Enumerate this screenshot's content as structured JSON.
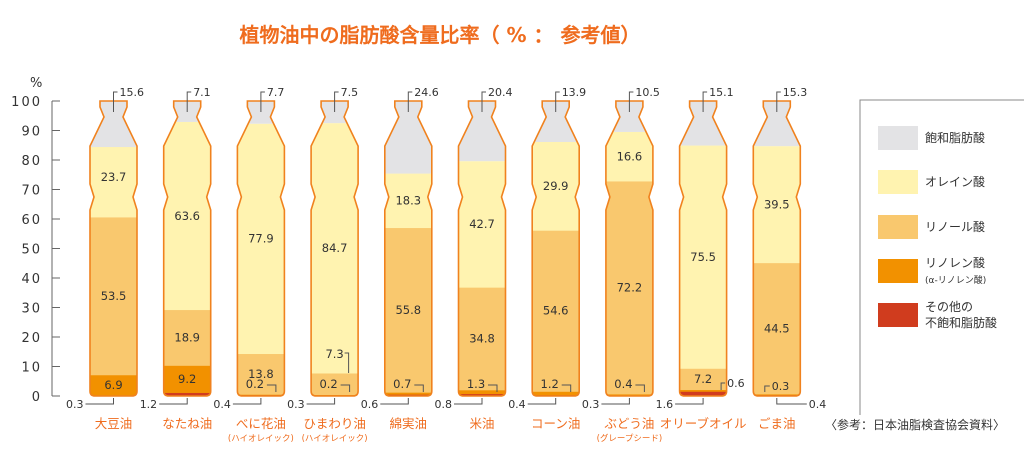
{
  "chart_data": {
    "type": "bar",
    "stacked": true,
    "title": "植物油中の脂肪酸含量比率（ % ： 参考値）",
    "ylabel": "%",
    "ylim": [
      0,
      100
    ],
    "yticks": [
      "0",
      "10",
      "20",
      "30",
      "40",
      "50",
      "60",
      "70",
      "80",
      "90",
      "100"
    ],
    "categories": [
      {
        "name": "大豆油",
        "sub": ""
      },
      {
        "name": "なたね油",
        "sub": ""
      },
      {
        "name": "べに花油",
        "sub": "(ハイオレイック)"
      },
      {
        "name": "ひまわり油",
        "sub": "(ハイオレイック)"
      },
      {
        "name": "綿実油",
        "sub": ""
      },
      {
        "name": "米油",
        "sub": ""
      },
      {
        "name": "コーン油",
        "sub": ""
      },
      {
        "name": "ぶどう油",
        "sub": "(グレープシード)"
      },
      {
        "name": "オリーブオイル",
        "sub": ""
      },
      {
        "name": "ごま油",
        "sub": ""
      }
    ],
    "series": [
      {
        "name": "その他の不飽和脂肪酸",
        "color": "#d03c1e",
        "values": [
          0.3,
          1.2,
          0.4,
          0.3,
          0.6,
          0.8,
          0.4,
          0.3,
          1.6,
          0.4
        ]
      },
      {
        "name": "リノレン酸(α-リノレン酸)",
        "color": "#f29100",
        "values": [
          6.9,
          9.2,
          0.2,
          0.2,
          0.7,
          1.3,
          1.2,
          0.4,
          0.6,
          0.3
        ]
      },
      {
        "name": "リノール酸",
        "color": "#f9c86e",
        "values": [
          53.5,
          18.9,
          13.8,
          7.3,
          55.8,
          34.8,
          54.6,
          72.2,
          7.2,
          44.5
        ]
      },
      {
        "name": "オレイン酸",
        "color": "#fff3b0",
        "values": [
          23.7,
          63.6,
          77.9,
          84.7,
          18.3,
          42.7,
          29.9,
          16.6,
          75.5,
          39.5
        ]
      },
      {
        "name": "飽和脂肪酸",
        "color": "#e3e3e5",
        "values": [
          15.6,
          7.1,
          7.7,
          7.5,
          24.6,
          20.4,
          13.9,
          10.5,
          15.1,
          15.3
        ]
      }
    ],
    "legend": {
      "position": "right",
      "items": [
        {
          "label": "飽和脂肪酸",
          "sub": "",
          "color": "#e3e3e5"
        },
        {
          "label": "オレイン酸",
          "sub": "",
          "color": "#fff3b0"
        },
        {
          "label": "リノール酸",
          "sub": "",
          "color": "#f9c86e"
        },
        {
          "label": "リノレン酸",
          "sub": "(α-リノレン酸)",
          "color": "#f29100"
        },
        {
          "label": "その他の",
          "sub": "不飽和脂肪酸",
          "color": "#d03c1e"
        }
      ]
    },
    "source": "〈参考：日本油脂検査協会資料〉",
    "outline_color": "#f0821e",
    "title_color": "#ef6c1e"
  }
}
